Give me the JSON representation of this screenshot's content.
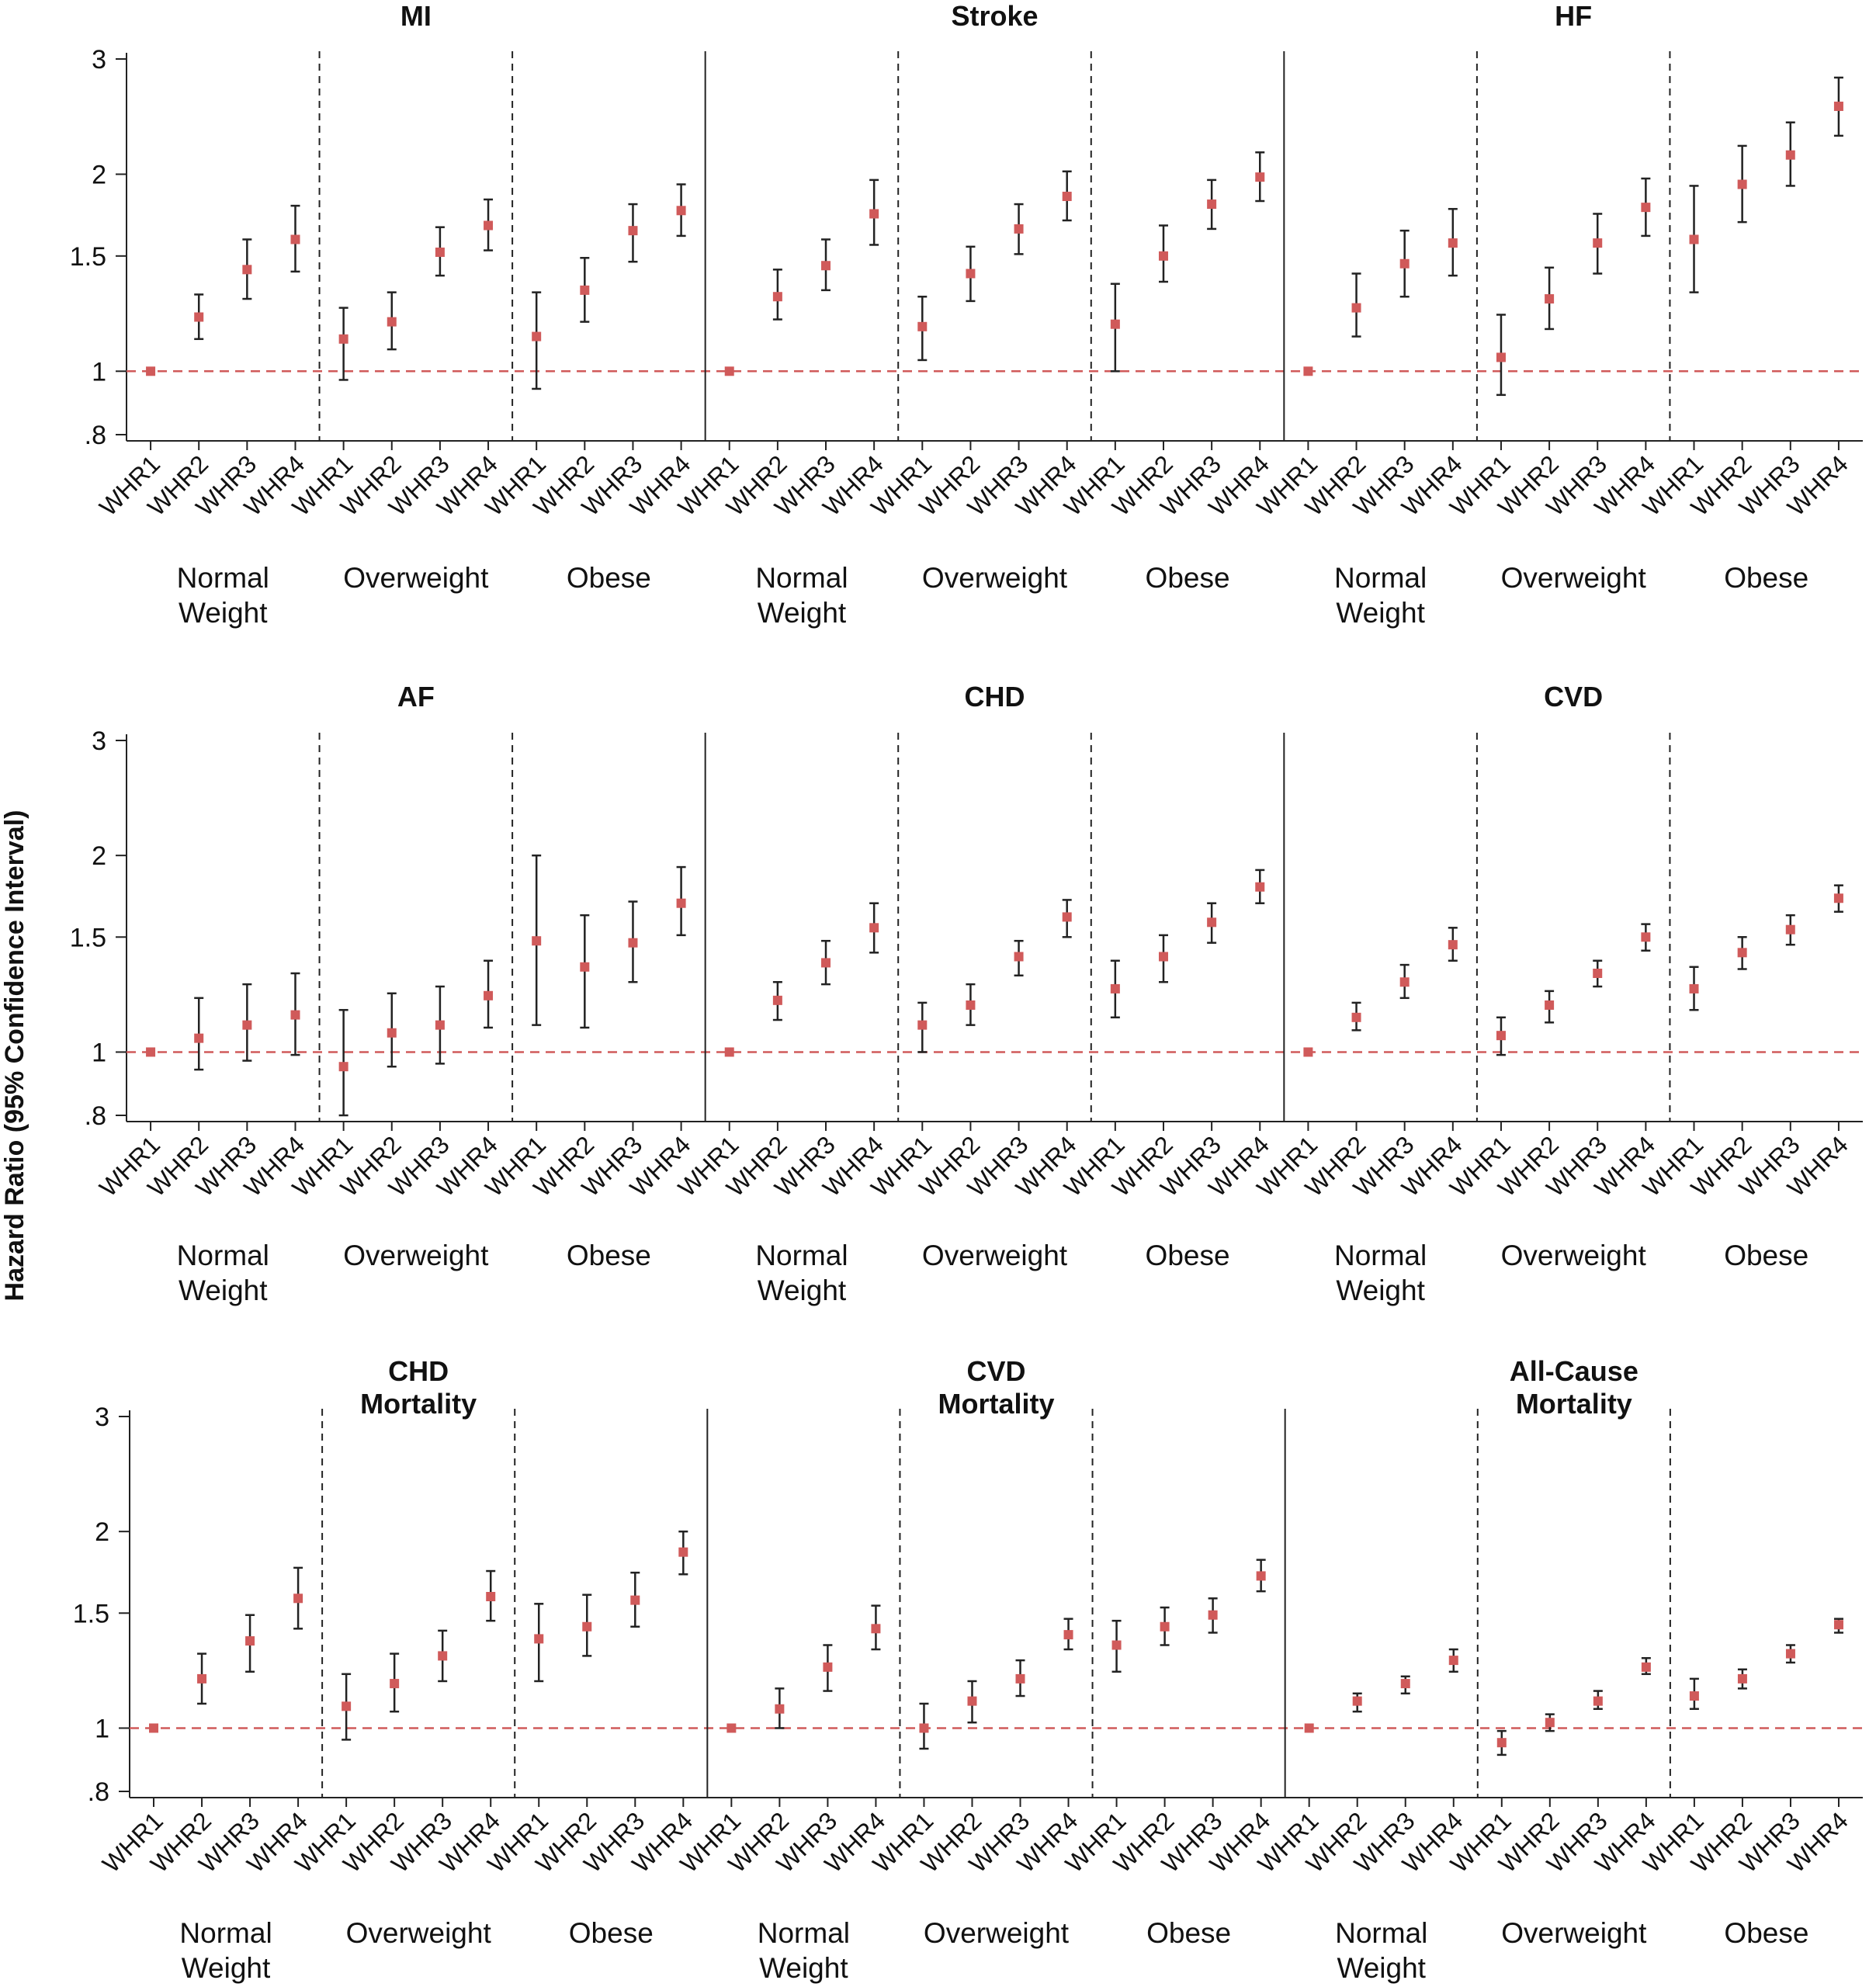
{
  "y_axis_label": "Hazard Ratio (95% Confidence Interval)",
  "marker_color": "#d05a5a",
  "reference_line_color": "#d05a5a",
  "chart_data": {
    "type": "scatter",
    "error_bars": true,
    "y_scale": "log",
    "ylim": [
      0.8,
      3
    ],
    "y_ticks": [
      3,
      2,
      1.5,
      1,
      0.8
    ],
    "y_tick_labels": [
      "3",
      "2",
      "1.5",
      "1",
      ".8"
    ],
    "reference_line": 1,
    "categories": [
      "WHR1",
      "WHR2",
      "WHR3",
      "WHR4"
    ],
    "groups": [
      "Normal Weight",
      "Overweight",
      "Obese"
    ],
    "group_label_lines": [
      [
        "Normal",
        "Weight"
      ],
      [
        "Overweight"
      ],
      [
        "Obese"
      ]
    ],
    "rows": [
      {
        "panels": [
          {
            "title": [
              "MI"
            ],
            "points": [
              [
                1.0,
                1.0,
                1.0
              ],
              [
                1.21,
                1.12,
                1.31
              ],
              [
                1.43,
                1.29,
                1.59
              ],
              [
                1.59,
                1.42,
                1.79
              ],
              [
                1.12,
                0.97,
                1.25
              ],
              [
                1.19,
                1.08,
                1.32
              ],
              [
                1.52,
                1.4,
                1.66
              ],
              [
                1.67,
                1.53,
                1.83
              ],
              [
                1.13,
                0.94,
                1.32
              ],
              [
                1.33,
                1.19,
                1.49
              ],
              [
                1.64,
                1.47,
                1.8
              ],
              [
                1.76,
                1.61,
                1.93
              ]
            ]
          },
          {
            "title": [
              "Stroke"
            ],
            "points": [
              [
                1.0,
                1.0,
                1.0
              ],
              [
                1.3,
                1.2,
                1.43
              ],
              [
                1.45,
                1.33,
                1.59
              ],
              [
                1.74,
                1.56,
                1.96
              ],
              [
                1.17,
                1.04,
                1.3
              ],
              [
                1.41,
                1.28,
                1.55
              ],
              [
                1.65,
                1.51,
                1.8
              ],
              [
                1.85,
                1.7,
                2.02
              ],
              [
                1.18,
                1.0,
                1.36
              ],
              [
                1.5,
                1.37,
                1.67
              ],
              [
                1.8,
                1.65,
                1.96
              ],
              [
                1.98,
                1.82,
                2.16
              ]
            ]
          },
          {
            "title": [
              "HF"
            ],
            "points": [
              [
                1.0,
                1.0,
                1.0
              ],
              [
                1.25,
                1.13,
                1.41
              ],
              [
                1.46,
                1.3,
                1.64
              ],
              [
                1.57,
                1.4,
                1.77
              ],
              [
                1.05,
                0.92,
                1.22
              ],
              [
                1.29,
                1.16,
                1.44
              ],
              [
                1.57,
                1.41,
                1.74
              ],
              [
                1.78,
                1.61,
                1.97
              ],
              [
                1.59,
                1.32,
                1.92
              ],
              [
                1.93,
                1.69,
                2.21
              ],
              [
                2.14,
                1.92,
                2.4
              ],
              [
                2.54,
                2.29,
                2.81
              ]
            ]
          }
        ]
      },
      {
        "panels": [
          {
            "title": [
              "AF"
            ],
            "points": [
              [
                1.0,
                1.0,
                1.0
              ],
              [
                1.05,
                0.94,
                1.21
              ],
              [
                1.1,
                0.97,
                1.27
              ],
              [
                1.14,
                0.99,
                1.32
              ],
              [
                0.95,
                0.8,
                1.16
              ],
              [
                1.07,
                0.95,
                1.23
              ],
              [
                1.1,
                0.96,
                1.26
              ],
              [
                1.22,
                1.09,
                1.38
              ],
              [
                1.48,
                1.1,
                2.0
              ],
              [
                1.35,
                1.09,
                1.62
              ],
              [
                1.47,
                1.28,
                1.7
              ],
              [
                1.69,
                1.51,
                1.92
              ]
            ]
          },
          {
            "title": [
              "CHD"
            ],
            "points": [
              [
                1.0,
                1.0,
                1.0
              ],
              [
                1.2,
                1.12,
                1.28
              ],
              [
                1.37,
                1.27,
                1.48
              ],
              [
                1.55,
                1.42,
                1.69
              ],
              [
                1.1,
                1.0,
                1.19
              ],
              [
                1.18,
                1.1,
                1.27
              ],
              [
                1.4,
                1.31,
                1.48
              ],
              [
                1.61,
                1.5,
                1.71
              ],
              [
                1.25,
                1.13,
                1.38
              ],
              [
                1.4,
                1.28,
                1.51
              ],
              [
                1.58,
                1.47,
                1.69
              ],
              [
                1.79,
                1.69,
                1.9
              ]
            ]
          },
          {
            "title": [
              "CVD"
            ],
            "points": [
              [
                1.0,
                1.0,
                1.0
              ],
              [
                1.13,
                1.08,
                1.19
              ],
              [
                1.28,
                1.21,
                1.36
              ],
              [
                1.46,
                1.38,
                1.55
              ],
              [
                1.06,
                0.99,
                1.13
              ],
              [
                1.18,
                1.11,
                1.24
              ],
              [
                1.32,
                1.26,
                1.38
              ],
              [
                1.5,
                1.43,
                1.57
              ],
              [
                1.25,
                1.16,
                1.35
              ],
              [
                1.42,
                1.34,
                1.5
              ],
              [
                1.54,
                1.46,
                1.62
              ],
              [
                1.72,
                1.64,
                1.8
              ]
            ]
          }
        ]
      },
      {
        "panels": [
          {
            "title": [
              "CHD",
              "Mortality"
            ],
            "points": [
              [
                1.0,
                1.0,
                1.0
              ],
              [
                1.19,
                1.09,
                1.3
              ],
              [
                1.36,
                1.22,
                1.49
              ],
              [
                1.58,
                1.42,
                1.76
              ],
              [
                1.08,
                0.96,
                1.21
              ],
              [
                1.17,
                1.06,
                1.3
              ],
              [
                1.29,
                1.18,
                1.41
              ],
              [
                1.59,
                1.46,
                1.74
              ],
              [
                1.37,
                1.18,
                1.55
              ],
              [
                1.43,
                1.29,
                1.6
              ],
              [
                1.57,
                1.43,
                1.73
              ],
              [
                1.86,
                1.72,
                2.0
              ]
            ]
          },
          {
            "title": [
              "CVD",
              "Mortality"
            ],
            "points": [
              [
                1.0,
                1.0,
                1.0
              ],
              [
                1.07,
                1.0,
                1.15
              ],
              [
                1.24,
                1.14,
                1.34
              ],
              [
                1.42,
                1.32,
                1.54
              ],
              [
                1.0,
                0.93,
                1.09
              ],
              [
                1.1,
                1.02,
                1.18
              ],
              [
                1.19,
                1.12,
                1.27
              ],
              [
                1.39,
                1.32,
                1.47
              ],
              [
                1.34,
                1.22,
                1.46
              ],
              [
                1.43,
                1.34,
                1.53
              ],
              [
                1.49,
                1.4,
                1.58
              ],
              [
                1.71,
                1.62,
                1.81
              ]
            ]
          },
          {
            "title": [
              "All-Cause",
              "Mortality"
            ],
            "points": [
              [
                1.0,
                1.0,
                1.0
              ],
              [
                1.1,
                1.06,
                1.13
              ],
              [
                1.17,
                1.13,
                1.2
              ],
              [
                1.27,
                1.22,
                1.32
              ],
              [
                0.95,
                0.91,
                0.99
              ],
              [
                1.02,
                0.99,
                1.05
              ],
              [
                1.1,
                1.07,
                1.14
              ],
              [
                1.24,
                1.21,
                1.28
              ],
              [
                1.12,
                1.07,
                1.19
              ],
              [
                1.19,
                1.15,
                1.23
              ],
              [
                1.3,
                1.26,
                1.34
              ],
              [
                1.44,
                1.4,
                1.47
              ]
            ]
          }
        ]
      }
    ]
  }
}
